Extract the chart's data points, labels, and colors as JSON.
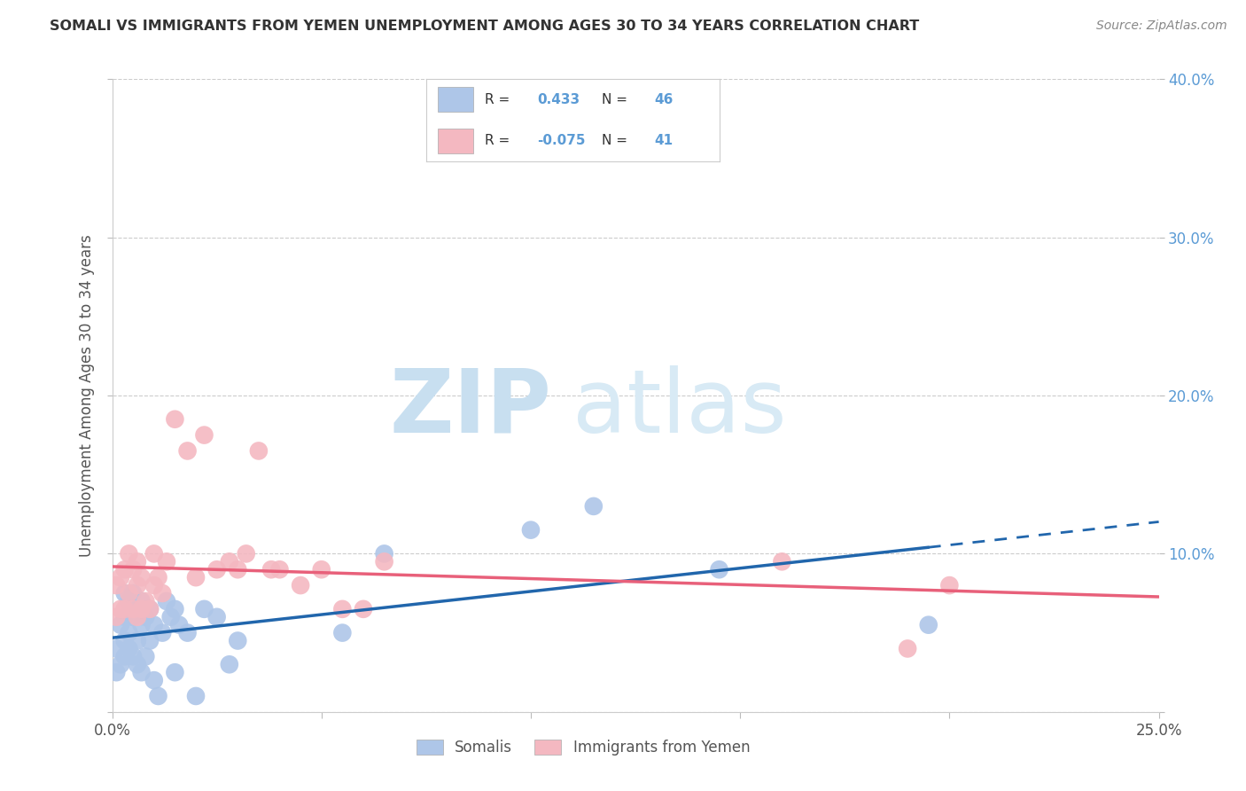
{
  "title": "SOMALI VS IMMIGRANTS FROM YEMEN UNEMPLOYMENT AMONG AGES 30 TO 34 YEARS CORRELATION CHART",
  "source": "Source: ZipAtlas.com",
  "ylabel": "Unemployment Among Ages 30 to 34 years",
  "xlim": [
    0.0,
    0.25
  ],
  "ylim": [
    0.0,
    0.4
  ],
  "xticks": [
    0.0,
    0.05,
    0.1,
    0.15,
    0.2,
    0.25
  ],
  "yticks": [
    0.0,
    0.1,
    0.2,
    0.3,
    0.4
  ],
  "somali_R": 0.433,
  "somali_N": 46,
  "yemen_R": -0.075,
  "yemen_N": 41,
  "somali_color": "#aec6e8",
  "somali_line_color": "#2166ac",
  "yemen_color": "#f4b8c1",
  "yemen_line_color": "#e8607a",
  "somali_x": [
    0.001,
    0.001,
    0.002,
    0.002,
    0.003,
    0.003,
    0.003,
    0.003,
    0.004,
    0.004,
    0.004,
    0.005,
    0.005,
    0.005,
    0.005,
    0.006,
    0.006,
    0.006,
    0.007,
    0.007,
    0.007,
    0.008,
    0.008,
    0.009,
    0.009,
    0.01,
    0.01,
    0.011,
    0.012,
    0.013,
    0.014,
    0.015,
    0.015,
    0.016,
    0.018,
    0.02,
    0.022,
    0.025,
    0.028,
    0.03,
    0.055,
    0.065,
    0.1,
    0.115,
    0.145,
    0.195
  ],
  "somali_y": [
    0.025,
    0.04,
    0.03,
    0.055,
    0.035,
    0.045,
    0.06,
    0.075,
    0.04,
    0.05,
    0.07,
    0.035,
    0.06,
    0.065,
    0.075,
    0.03,
    0.045,
    0.065,
    0.025,
    0.055,
    0.07,
    0.035,
    0.06,
    0.045,
    0.065,
    0.02,
    0.055,
    0.01,
    0.05,
    0.07,
    0.06,
    0.025,
    0.065,
    0.055,
    0.05,
    0.01,
    0.065,
    0.06,
    0.03,
    0.045,
    0.05,
    0.1,
    0.115,
    0.13,
    0.09,
    0.055
  ],
  "yemen_x": [
    0.001,
    0.001,
    0.002,
    0.002,
    0.003,
    0.003,
    0.004,
    0.004,
    0.005,
    0.005,
    0.006,
    0.006,
    0.006,
    0.007,
    0.007,
    0.008,
    0.009,
    0.01,
    0.01,
    0.011,
    0.012,
    0.013,
    0.015,
    0.018,
    0.02,
    0.022,
    0.025,
    0.028,
    0.03,
    0.032,
    0.035,
    0.038,
    0.04,
    0.045,
    0.05,
    0.055,
    0.06,
    0.065,
    0.16,
    0.19,
    0.2
  ],
  "yemen_y": [
    0.06,
    0.08,
    0.065,
    0.085,
    0.065,
    0.09,
    0.075,
    0.1,
    0.065,
    0.09,
    0.06,
    0.08,
    0.095,
    0.065,
    0.085,
    0.07,
    0.065,
    0.08,
    0.1,
    0.085,
    0.075,
    0.095,
    0.185,
    0.165,
    0.085,
    0.175,
    0.09,
    0.095,
    0.09,
    0.1,
    0.165,
    0.09,
    0.09,
    0.08,
    0.09,
    0.065,
    0.065,
    0.095,
    0.095,
    0.04,
    0.08
  ],
  "watermark_zip": "ZIP",
  "watermark_atlas": "atlas",
  "legend_somali": "Somalis",
  "legend_yemen": "Immigrants from Yemen",
  "background_color": "#ffffff",
  "grid_color": "#cccccc",
  "right_tick_color": "#5b9bd5"
}
